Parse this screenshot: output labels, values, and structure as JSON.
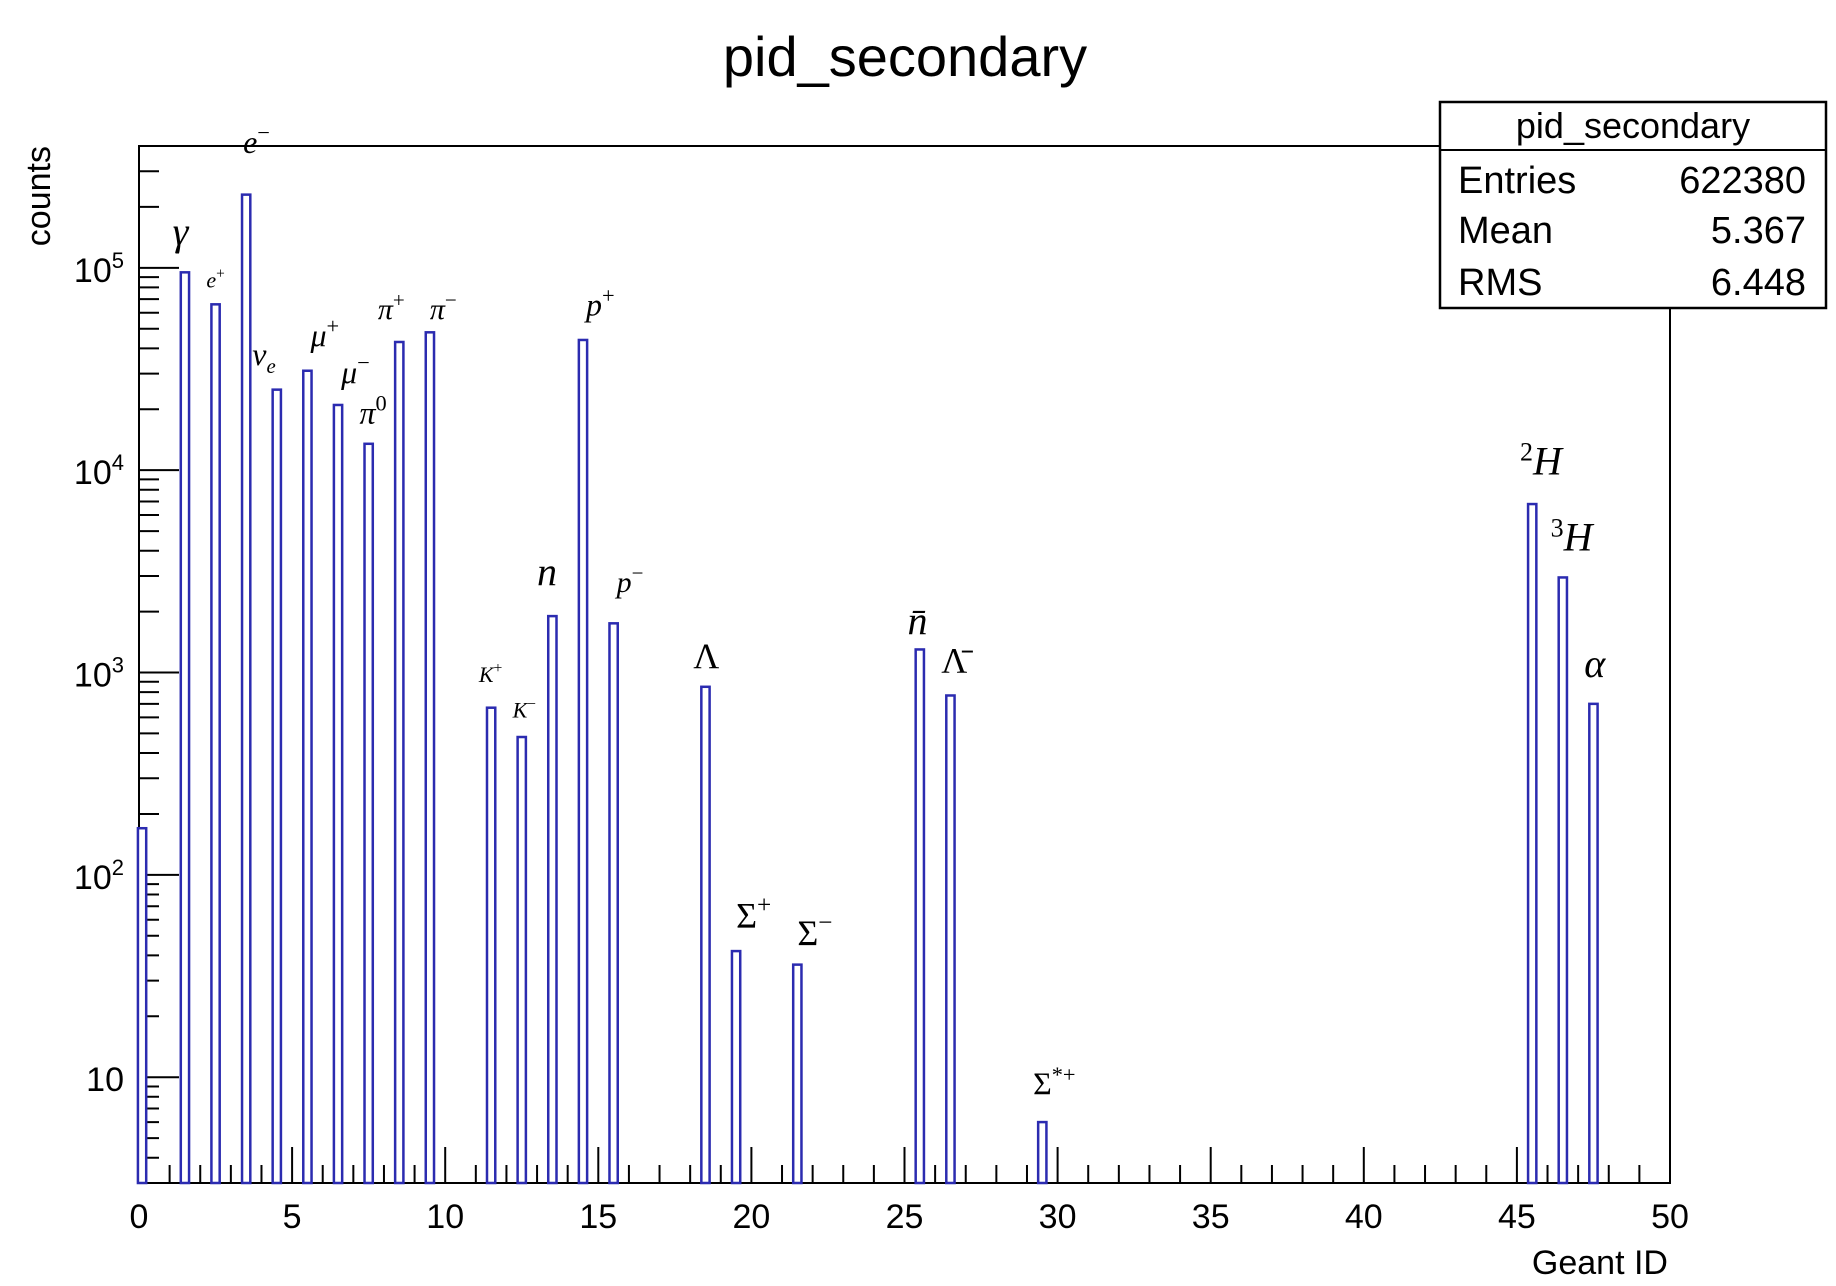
{
  "chart_data": {
    "type": "bar",
    "title": "pid_secondary",
    "xlabel": "Geant ID",
    "ylabel": "counts",
    "yscale": "log",
    "xlim": [
      0,
      50
    ],
    "ylim": [
      3,
      400000
    ],
    "xticks": [
      0,
      5,
      10,
      15,
      20,
      25,
      30,
      35,
      40,
      45,
      50
    ],
    "yticks": [
      {
        "value": 10,
        "label": "10"
      },
      {
        "value": 100,
        "label": "10",
        "exp": "2"
      },
      {
        "value": 1000,
        "label": "10",
        "exp": "3"
      },
      {
        "value": 10000,
        "label": "10",
        "exp": "4"
      },
      {
        "value": 100000,
        "label": "10",
        "exp": "5"
      }
    ],
    "bar_color": "#2b2bb0",
    "bars": [
      {
        "x": 0,
        "y": 170
      },
      {
        "x": 1,
        "y": 95000
      },
      {
        "x": 2,
        "y": 66000
      },
      {
        "x": 3,
        "y": 230000
      },
      {
        "x": 4,
        "y": 25000
      },
      {
        "x": 5,
        "y": 31000
      },
      {
        "x": 6,
        "y": 21000
      },
      {
        "x": 7,
        "y": 13500
      },
      {
        "x": 8,
        "y": 43000
      },
      {
        "x": 9,
        "y": 48000
      },
      {
        "x": 11,
        "y": 670
      },
      {
        "x": 12,
        "y": 480
      },
      {
        "x": 13,
        "y": 1900
      },
      {
        "x": 14,
        "y": 44000
      },
      {
        "x": 15,
        "y": 1750
      },
      {
        "x": 18,
        "y": 850
      },
      {
        "x": 19,
        "y": 42
      },
      {
        "x": 21,
        "y": 36
      },
      {
        "x": 25,
        "y": 1300
      },
      {
        "x": 26,
        "y": 770
      },
      {
        "x": 29,
        "y": 6
      },
      {
        "x": 45,
        "y": 6800
      },
      {
        "x": 46,
        "y": 2950
      },
      {
        "x": 47,
        "y": 700
      }
    ],
    "annotations": [
      {
        "base": "γ",
        "sup": "",
        "sub": "",
        "x": 1.1,
        "y": 130000,
        "size": 40
      },
      {
        "base": "e",
        "sup": "−",
        "sub": "",
        "x": 3.4,
        "y": 370000,
        "size": 32
      },
      {
        "base": "e",
        "sup": "+",
        "sub": "",
        "x": 2.2,
        "y": 80000,
        "size": 22
      },
      {
        "base": "ν",
        "sup": "",
        "sub": "e",
        "x": 3.7,
        "y": 33000,
        "size": 32
      },
      {
        "base": "μ",
        "sup": "+",
        "sub": "",
        "x": 5.6,
        "y": 41000,
        "size": 32
      },
      {
        "base": "μ",
        "sup": "−",
        "sub": "",
        "x": 6.6,
        "y": 27000,
        "size": 32
      },
      {
        "base": "π",
        "sup": "0",
        "sub": "",
        "x": 7.2,
        "y": 17000,
        "size": 32
      },
      {
        "base": "π",
        "sup": "+",
        "sub": "",
        "x": 7.8,
        "y": 56000,
        "size": 30
      },
      {
        "base": "π",
        "sup": "−",
        "sub": "",
        "x": 9.5,
        "y": 56000,
        "size": 30
      },
      {
        "base": "p",
        "sup": "+",
        "sub": "",
        "x": 14.6,
        "y": 58000,
        "size": 32
      },
      {
        "base": "n",
        "sup": "",
        "sub": "",
        "x": 13.0,
        "y": 2700,
        "size": 40
      },
      {
        "base": "p",
        "sup": "−",
        "sub": "",
        "x": 15.6,
        "y": 2500,
        "size": 30
      },
      {
        "base": "K",
        "sup": "+",
        "sub": "",
        "x": 11.1,
        "y": 900,
        "size": 22
      },
      {
        "base": "K",
        "sup": "−",
        "sub": "",
        "x": 12.2,
        "y": 600,
        "size": 22
      },
      {
        "base": "Λ",
        "sup": "",
        "sub": "",
        "x": 18.1,
        "y": 1050,
        "size": 36
      },
      {
        "base": "Σ",
        "sup": "+",
        "sub": "",
        "x": 19.5,
        "y": 55.0,
        "size": 36
      },
      {
        "base": "Σ",
        "sup": "−",
        "sub": "",
        "x": 21.5,
        "y": 45,
        "size": 36
      },
      {
        "base": "n̄",
        "sup": "",
        "sub": "",
        "x": 25.1,
        "y": 1550,
        "size": 40
      },
      {
        "base": "Λ̄",
        "sup": "",
        "sub": "",
        "x": 26.2,
        "y": 1000,
        "size": 36
      },
      {
        "base": "Σ",
        "sup": "*+",
        "sub": "",
        "x": 29.2,
        "y": 8.2,
        "size": 32
      },
      {
        "base": "H",
        "sup": "2",
        "sub": "",
        "x": 45.1,
        "y": 9500,
        "size": 40
      },
      {
        "base": "H",
        "sup": "3",
        "sub": "",
        "x": 46.1,
        "y": 4000,
        "size": 40
      },
      {
        "base": "α",
        "sup": "",
        "sub": "",
        "x": 47.2,
        "y": 950,
        "size": 40
      }
    ],
    "stats": {
      "title": "pid_secondary",
      "rows": [
        {
          "label": "Entries",
          "value": "622380"
        },
        {
          "label": "Mean",
          "value": "5.367"
        },
        {
          "label": "RMS",
          "value": "6.448"
        }
      ]
    }
  }
}
